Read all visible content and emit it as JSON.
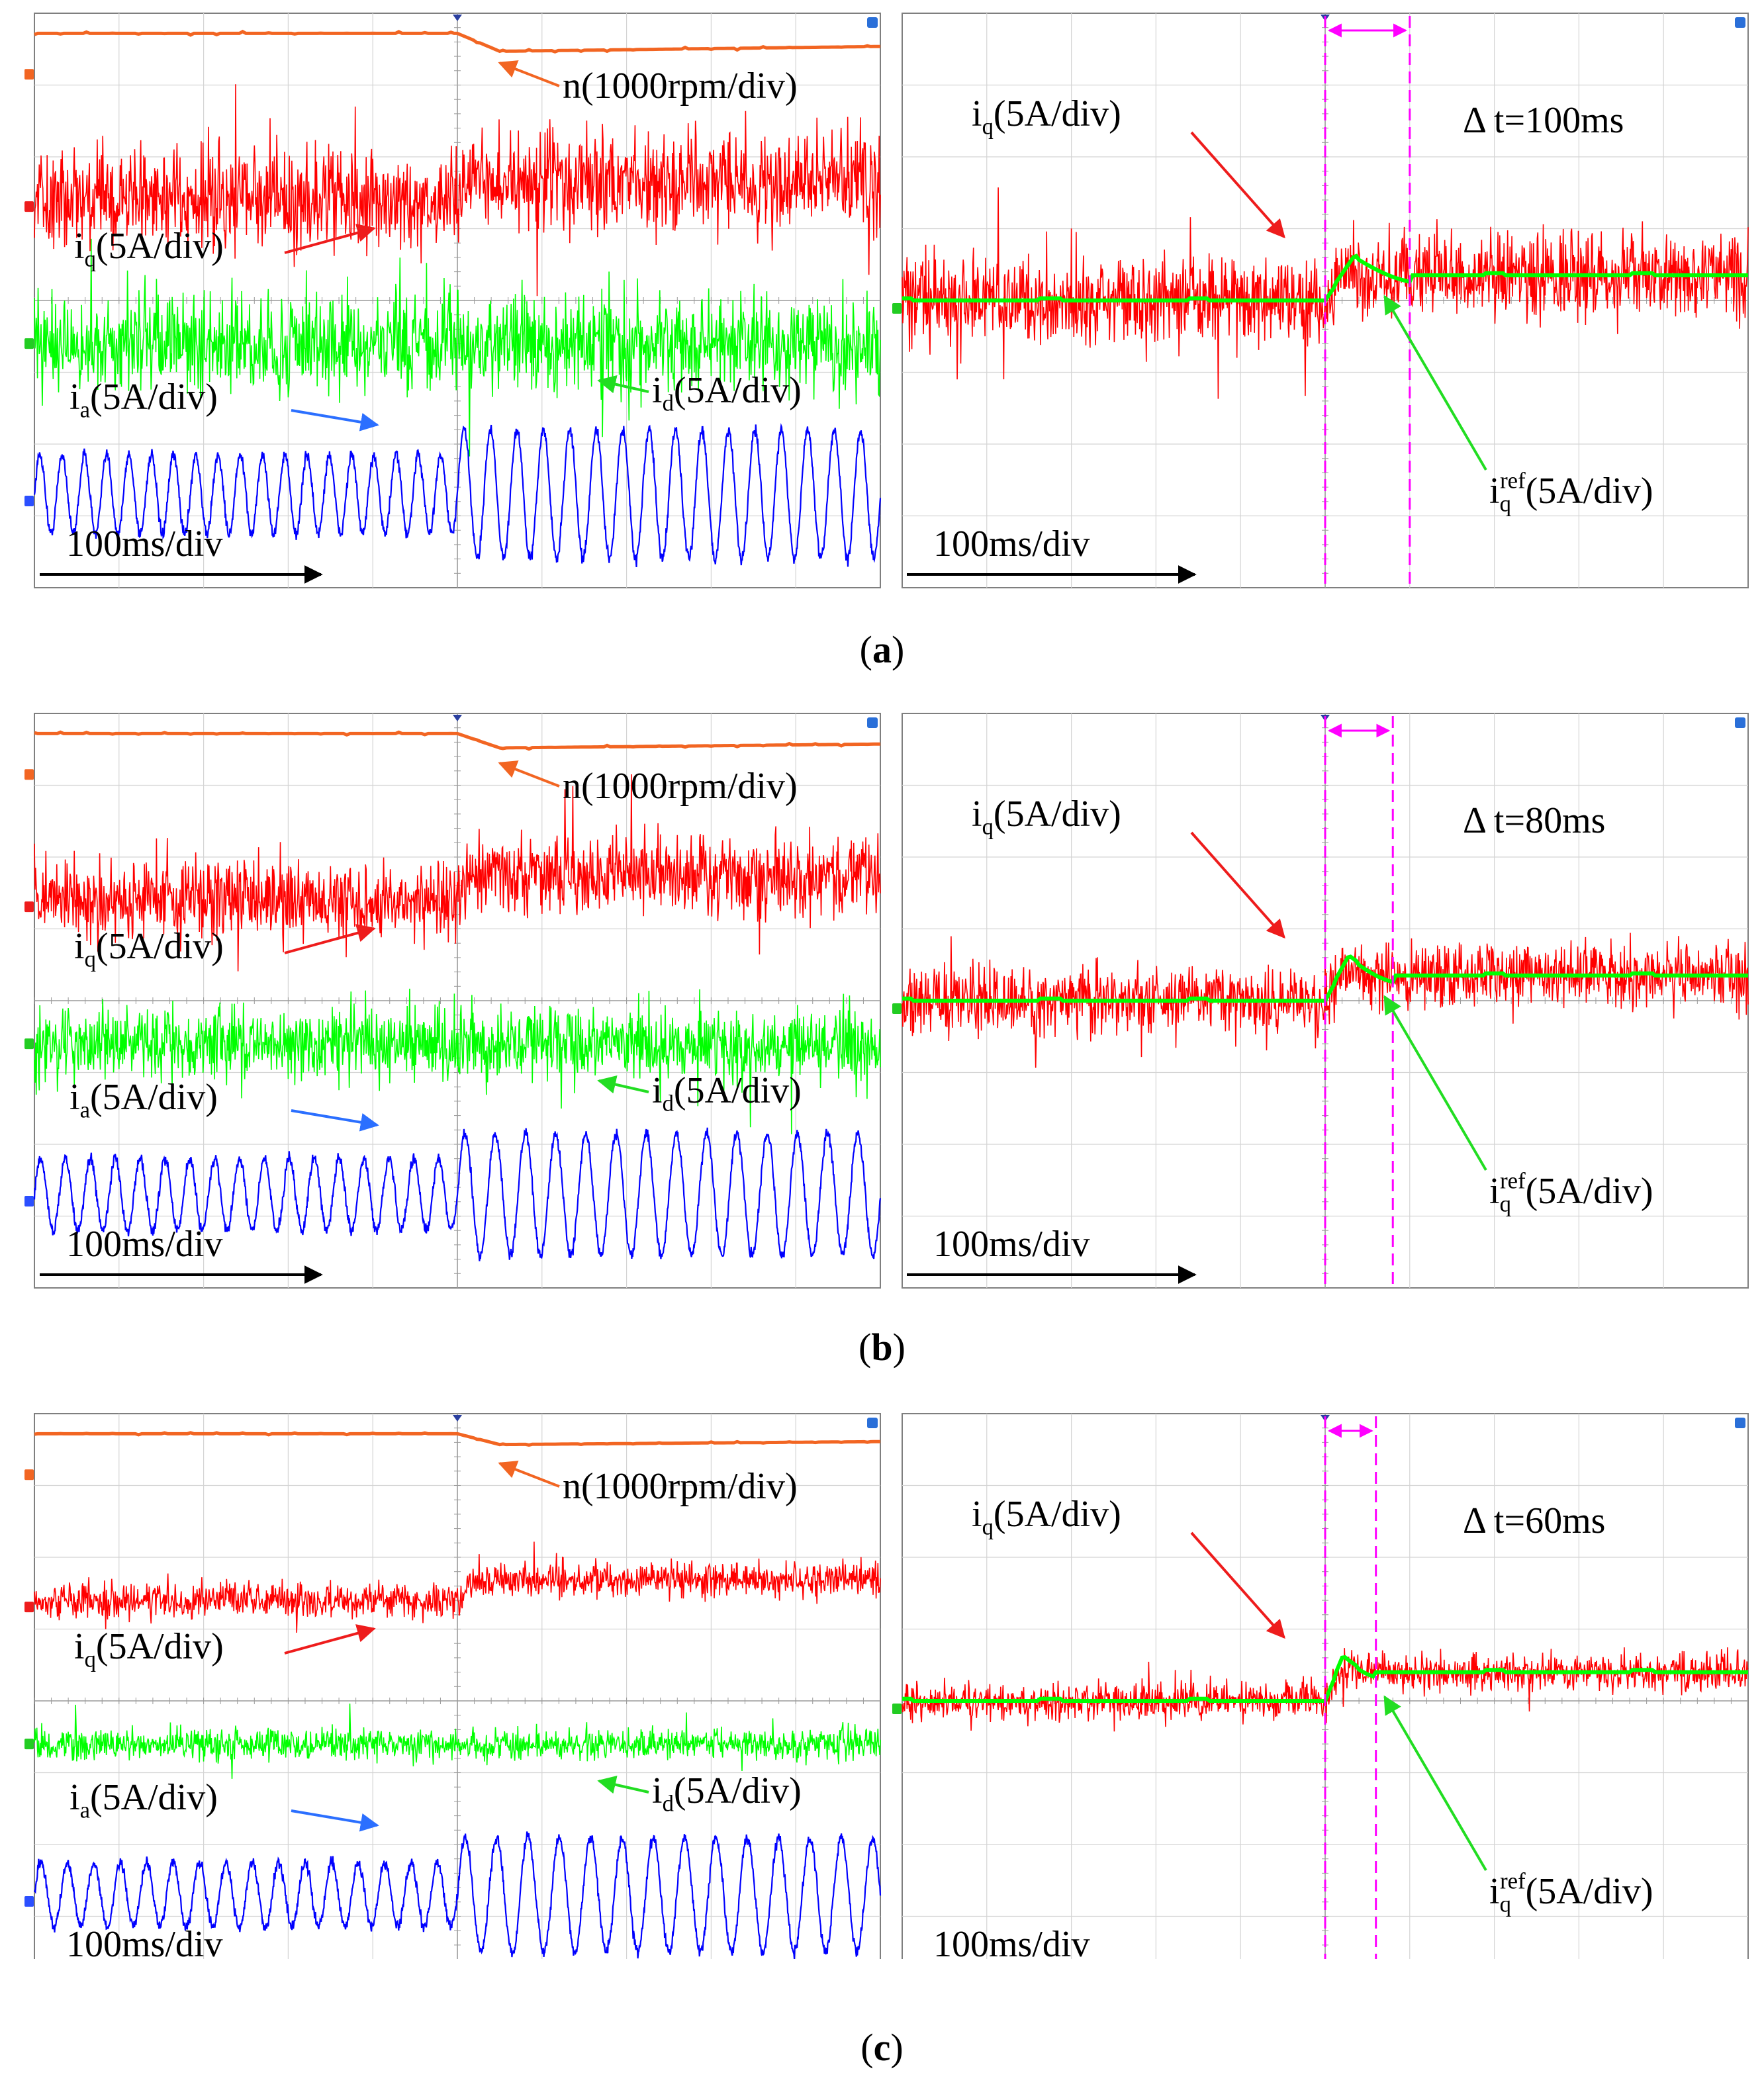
{
  "figure": {
    "rows": [
      {
        "caption_letter": "a",
        "left": {
          "time_base": "100ms/div",
          "labels": {
            "n": {
              "name": "n",
              "text": "(1000rpm/div)"
            },
            "iq": {
              "name": "i",
              "sub": "q",
              "text": "(5A/div)"
            },
            "id": {
              "name": "i",
              "sub": "d",
              "text": "(5A/div)"
            },
            "ia": {
              "name": "i",
              "sub": "a",
              "text": "(5A/div)"
            }
          }
        },
        "right": {
          "time_base": "100ms/div",
          "delta_t": "Δ t=100ms",
          "labels": {
            "iq": {
              "name": "i",
              "sub": "q",
              "text": "(5A/div)"
            },
            "iqref": {
              "name": "i",
              "sub": "q",
              "sup": "ref",
              "text": "(5A/div)"
            }
          }
        }
      },
      {
        "caption_letter": "b",
        "left": {
          "time_base": "100ms/div",
          "labels": {
            "n": {
              "name": "n",
              "text": "(1000rpm/div)"
            },
            "iq": {
              "name": "i",
              "sub": "q",
              "text": "(5A/div)"
            },
            "id": {
              "name": "i",
              "sub": "d",
              "text": "(5A/div)"
            },
            "ia": {
              "name": "i",
              "sub": "a",
              "text": "(5A/div)"
            }
          }
        },
        "right": {
          "time_base": "100ms/div",
          "delta_t": "Δ t=80ms",
          "labels": {
            "iq": {
              "name": "i",
              "sub": "q",
              "text": "(5A/div)"
            },
            "iqref": {
              "name": "i",
              "sub": "q",
              "sup": "ref",
              "text": "(5A/div)"
            }
          }
        }
      },
      {
        "caption_letter": "c",
        "left": {
          "time_base": "100ms/div",
          "labels": {
            "n": {
              "name": "n",
              "text": "(1000rpm/div)"
            },
            "iq": {
              "name": "i",
              "sub": "q",
              "text": "(5A/div)"
            },
            "id": {
              "name": "i",
              "sub": "d",
              "text": "(5A/div)"
            },
            "ia": {
              "name": "i",
              "sub": "a",
              "text": "(5A/div)"
            }
          }
        },
        "right": {
          "time_base": "100ms/div",
          "delta_t": "Δ t=60ms",
          "labels": {
            "iq": {
              "name": "i",
              "sub": "q",
              "text": "(5A/div)"
            },
            "iqref": {
              "name": "i",
              "sub": "q",
              "sup": "ref",
              "text": "(5A/div)"
            }
          }
        }
      }
    ]
  },
  "chart_data": [
    {
      "type": "line",
      "panel": "(a) left",
      "grid": true,
      "divisions": {
        "x": 10,
        "y": 8
      },
      "x_unit": "ms",
      "x_per_div": 100,
      "x_range": [
        0,
        1000
      ],
      "step_time_ms": 500,
      "series": [
        {
          "name": "n",
          "color": "#f26522",
          "scale_per_div": 1000,
          "unit": "rpm",
          "kind": "speed",
          "dip_div": 0.25,
          "noise_div": 0.05
        },
        {
          "name": "iq",
          "color": "#ff0000",
          "scale_per_div": 5,
          "unit": "A",
          "kind": "current",
          "before_div": 0,
          "after_div": 0.25,
          "noise_div": 0.65
        },
        {
          "name": "id",
          "color": "#00ff00",
          "scale_per_div": 5,
          "unit": "A",
          "kind": "current",
          "before_div": 0,
          "after_div": 0,
          "noise_div": 0.65
        },
        {
          "name": "ia",
          "color": "#0000ff",
          "scale_per_div": 5,
          "unit": "A",
          "kind": "sine",
          "amp_before_div": 0.55,
          "amp_after_div": 0.9,
          "cycles_per_div_before": 3.8,
          "cycles_per_div_after": 3.2
        }
      ]
    },
    {
      "type": "line",
      "panel": "(a) right",
      "grid": true,
      "divisions": {
        "x": 10,
        "y": 8
      },
      "x_unit": "ms",
      "x_per_div": 100,
      "x_range": [
        0,
        1000
      ],
      "step_time_ms": 500,
      "settling_time_ms": 100,
      "series": [
        {
          "name": "iq",
          "color": "#ff0000",
          "scale_per_div": 5,
          "unit": "A",
          "kind": "current",
          "before_div": 0.0,
          "after_div": 0.35,
          "noise_div": 0.6
        },
        {
          "name": "iqref",
          "color": "#00ff00",
          "scale_per_div": 5,
          "unit": "A",
          "kind": "reference",
          "before_div": 0.0,
          "after_div": 0.35,
          "overshoot_div": 0.25
        }
      ]
    },
    {
      "type": "line",
      "panel": "(b) left",
      "grid": true,
      "divisions": {
        "x": 10,
        "y": 8
      },
      "x_unit": "ms",
      "x_per_div": 100,
      "x_range": [
        0,
        1000
      ],
      "step_time_ms": 500,
      "series": [
        {
          "name": "n",
          "color": "#f26522",
          "scale_per_div": 1000,
          "unit": "rpm",
          "kind": "speed",
          "dip_div": 0.2,
          "noise_div": 0.04
        },
        {
          "name": "iq",
          "color": "#ff0000",
          "scale_per_div": 5,
          "unit": "A",
          "kind": "current",
          "before_div": 0,
          "after_div": 0.35,
          "noise_div": 0.55
        },
        {
          "name": "id",
          "color": "#00ff00",
          "scale_per_div": 5,
          "unit": "A",
          "kind": "current",
          "before_div": 0,
          "after_div": 0,
          "noise_div": 0.5
        },
        {
          "name": "ia",
          "color": "#0000ff",
          "scale_per_div": 5,
          "unit": "A",
          "kind": "sine",
          "amp_before_div": 0.5,
          "amp_after_div": 0.85,
          "cycles_per_div_before": 3.4,
          "cycles_per_div_after": 2.8
        }
      ]
    },
    {
      "type": "line",
      "panel": "(b) right",
      "grid": true,
      "divisions": {
        "x": 10,
        "y": 8
      },
      "x_unit": "ms",
      "x_per_div": 100,
      "x_range": [
        0,
        1000
      ],
      "step_time_ms": 500,
      "settling_time_ms": 80,
      "series": [
        {
          "name": "iq",
          "color": "#ff0000",
          "scale_per_div": 5,
          "unit": "A",
          "kind": "current",
          "before_div": 0.0,
          "after_div": 0.35,
          "noise_div": 0.45
        },
        {
          "name": "iqref",
          "color": "#00ff00",
          "scale_per_div": 5,
          "unit": "A",
          "kind": "reference",
          "before_div": 0.0,
          "after_div": 0.35,
          "overshoot_div": 0.25
        }
      ]
    },
    {
      "type": "line",
      "panel": "(c) left",
      "grid": true,
      "divisions": {
        "x": 10,
        "y": 8
      },
      "x_unit": "ms",
      "x_per_div": 100,
      "x_range": [
        0,
        1000
      ],
      "step_time_ms": 500,
      "series": [
        {
          "name": "n",
          "color": "#f26522",
          "scale_per_div": 1000,
          "unit": "rpm",
          "kind": "speed",
          "dip_div": 0.15,
          "noise_div": 0.03
        },
        {
          "name": "iq",
          "color": "#ff0000",
          "scale_per_div": 5,
          "unit": "A",
          "kind": "current",
          "before_div": 0,
          "after_div": 0.3,
          "noise_div": 0.25
        },
        {
          "name": "id",
          "color": "#00ff00",
          "scale_per_div": 5,
          "unit": "A",
          "kind": "current",
          "before_div": 0,
          "after_div": 0,
          "noise_div": 0.22
        },
        {
          "name": "ia",
          "color": "#0000ff",
          "scale_per_div": 5,
          "unit": "A",
          "kind": "sine",
          "amp_before_div": 0.45,
          "amp_after_div": 0.8,
          "cycles_per_div_before": 3.2,
          "cycles_per_div_after": 2.7
        }
      ]
    },
    {
      "type": "line",
      "panel": "(c) right",
      "grid": true,
      "divisions": {
        "x": 10,
        "y": 8
      },
      "x_unit": "ms",
      "x_per_div": 100,
      "x_range": [
        0,
        1000
      ],
      "step_time_ms": 500,
      "settling_time_ms": 60,
      "series": [
        {
          "name": "iq",
          "color": "#ff0000",
          "scale_per_div": 5,
          "unit": "A",
          "kind": "current",
          "before_div": 0.0,
          "after_div": 0.4,
          "noise_div": 0.25
        },
        {
          "name": "iqref",
          "color": "#00ff00",
          "scale_per_div": 5,
          "unit": "A",
          "kind": "reference",
          "before_div": 0.0,
          "after_div": 0.4,
          "overshoot_div": 0.2
        }
      ]
    }
  ]
}
